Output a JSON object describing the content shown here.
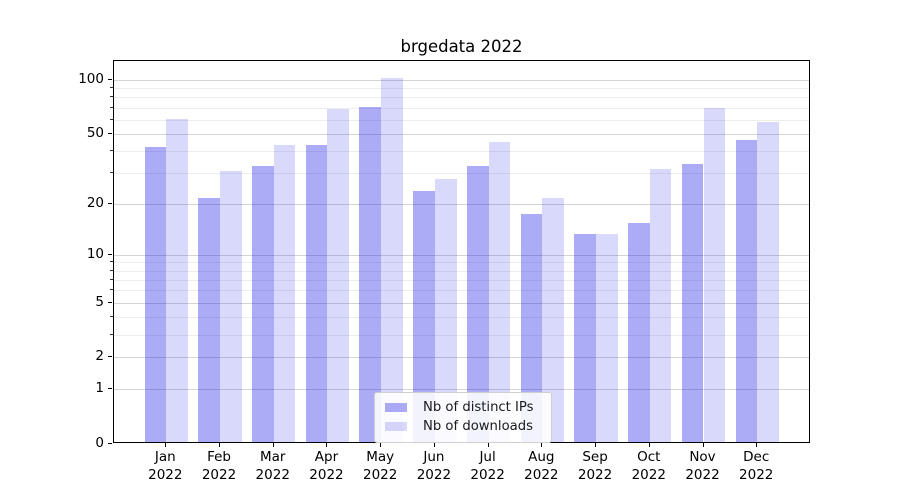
{
  "chart_data": {
    "type": "bar",
    "title": "brgedata 2022",
    "categories": [
      "Jan",
      "Feb",
      "Mar",
      "Apr",
      "May",
      "Jun",
      "Jul",
      "Aug",
      "Sep",
      "Oct",
      "Nov",
      "Dec"
    ],
    "category_year": "2022",
    "series": [
      {
        "name": "Nb of distinct IPs",
        "color_rgba": "rgba(25,25,230,0.36)",
        "color_hex": "#a8a8f5",
        "values": [
          41,
          21,
          32,
          42,
          69,
          23,
          32,
          17,
          13,
          15,
          33,
          45
        ]
      },
      {
        "name": "Nb of downloads",
        "color_rgba": "rgba(25,25,230,0.165)",
        "color_hex": "#d9d9f8",
        "values": [
          59,
          30,
          42,
          67,
          100,
          27,
          44,
          21,
          13,
          31,
          68,
          57
        ]
      }
    ],
    "yscale": "log10(value+1)",
    "ylim": [
      0,
      126
    ],
    "y_major_ticks": [
      0,
      1,
      2,
      5,
      10,
      20,
      50,
      100
    ],
    "y_minor_ticks": [
      3,
      4,
      6,
      7,
      8,
      9,
      30,
      40,
      60,
      70,
      80,
      90
    ],
    "grid": true,
    "legend_position": "lower center",
    "style": {
      "axis_color": "#000000",
      "grid_major_color": "#d4d4d4",
      "grid_minor_color": "#ededed",
      "text_color": "#000000",
      "background": "#ffffff"
    }
  }
}
